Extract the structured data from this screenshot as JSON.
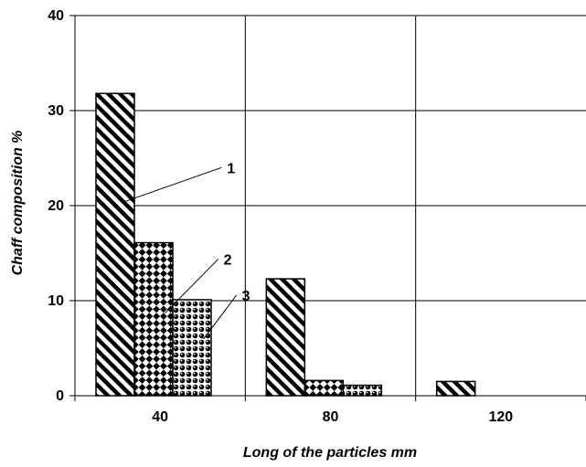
{
  "chart_data": {
    "type": "bar",
    "categories": [
      "40",
      "80",
      "120"
    ],
    "series": [
      {
        "values": [
          31.8,
          12.3,
          1.5
        ],
        "pattern": "diagonal-hatch"
      },
      {
        "values": [
          16.1,
          1.6,
          0
        ],
        "pattern": "checker-diamond"
      },
      {
        "values": [
          10.1,
          1.1,
          0
        ],
        "pattern": "dots"
      }
    ],
    "title": "",
    "xlabel": "Long of the particles mm",
    "ylabel": "Chaff composition  %",
    "ylim": [
      0,
      40
    ],
    "yticks": [
      0,
      10,
      20,
      30,
      40
    ],
    "grid": true,
    "annotations": [
      {
        "label": "1",
        "series": 0,
        "category": 0
      },
      {
        "label": "2",
        "series": 1,
        "category": 0
      },
      {
        "label": "3",
        "series": 2,
        "category": 0
      }
    ]
  }
}
